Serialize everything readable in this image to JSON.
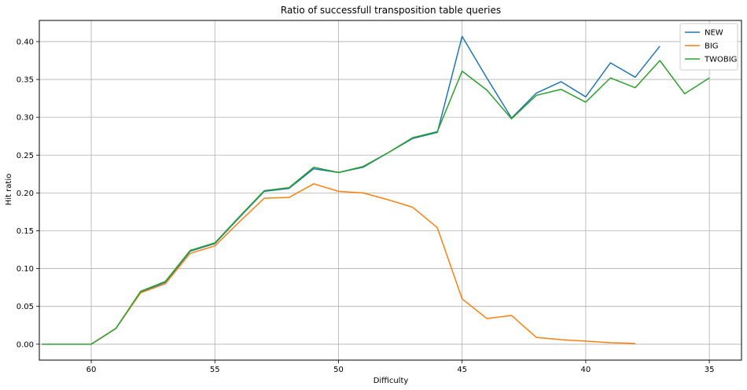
{
  "chart_data": {
    "type": "line",
    "title": "Ratio of successfull transposition table queries",
    "xlabel": "Difficulty",
    "ylabel": "Hit ratio",
    "xlim": [
      62.1,
      33.7
    ],
    "ylim": [
      -0.021,
      0.428
    ],
    "x_ticks": [
      60,
      55,
      50,
      45,
      40,
      35
    ],
    "y_ticks": [
      0.0,
      0.05,
      0.1,
      0.15,
      0.2,
      0.25,
      0.3,
      0.35,
      0.4
    ],
    "x_tick_labels": [
      "60",
      "55",
      "50",
      "45",
      "40",
      "35"
    ],
    "y_tick_labels": [
      "0.00",
      "0.05",
      "0.10",
      "0.15",
      "0.20",
      "0.25",
      "0.30",
      "0.35",
      "0.40"
    ],
    "grid": true,
    "legend_position": "top-right",
    "series": [
      {
        "name": "NEW",
        "color": "#1f77b4",
        "x": [
          62,
          61,
          60,
          59,
          58,
          57,
          56,
          55,
          54,
          53,
          52,
          51,
          50,
          49,
          48,
          47,
          46,
          45,
          44,
          43,
          42,
          41,
          40,
          39,
          38,
          37
        ],
        "y": [
          0.0,
          0.0,
          0.0,
          0.021,
          0.069,
          0.082,
          0.123,
          0.133,
          0.168,
          0.202,
          0.206,
          0.232,
          0.227,
          0.234,
          0.253,
          0.272,
          0.28,
          0.407,
          0.352,
          0.299,
          0.332,
          0.347,
          0.327,
          0.372,
          0.353,
          0.394
        ]
      },
      {
        "name": "BIG",
        "color": "#ff7f0e",
        "x": [
          62,
          61,
          60,
          59,
          58,
          57,
          56,
          55,
          54,
          53,
          52,
          51,
          50,
          49,
          48,
          47,
          46,
          45,
          44,
          43,
          42,
          41,
          40,
          39,
          38
        ],
        "y": [
          0.0,
          0.0,
          0.0,
          0.021,
          0.068,
          0.08,
          0.12,
          0.13,
          0.162,
          0.193,
          0.194,
          0.212,
          0.202,
          0.2,
          0.191,
          0.181,
          0.154,
          0.06,
          0.034,
          0.038,
          0.009,
          0.006,
          0.004,
          0.002,
          0.001
        ]
      },
      {
        "name": "TWOBIG",
        "color": "#2ca02c",
        "x": [
          62,
          61,
          60,
          59,
          58,
          57,
          56,
          55,
          54,
          53,
          52,
          51,
          50,
          49,
          48,
          47,
          46,
          45,
          44,
          43,
          42,
          41,
          40,
          39,
          38,
          37,
          36,
          35
        ],
        "y": [
          0.0,
          0.0,
          0.0,
          0.021,
          0.07,
          0.083,
          0.124,
          0.134,
          0.169,
          0.203,
          0.207,
          0.234,
          0.227,
          0.235,
          0.253,
          0.273,
          0.281,
          0.361,
          0.336,
          0.298,
          0.329,
          0.337,
          0.32,
          0.352,
          0.339,
          0.375,
          0.331,
          0.352
        ]
      }
    ]
  }
}
